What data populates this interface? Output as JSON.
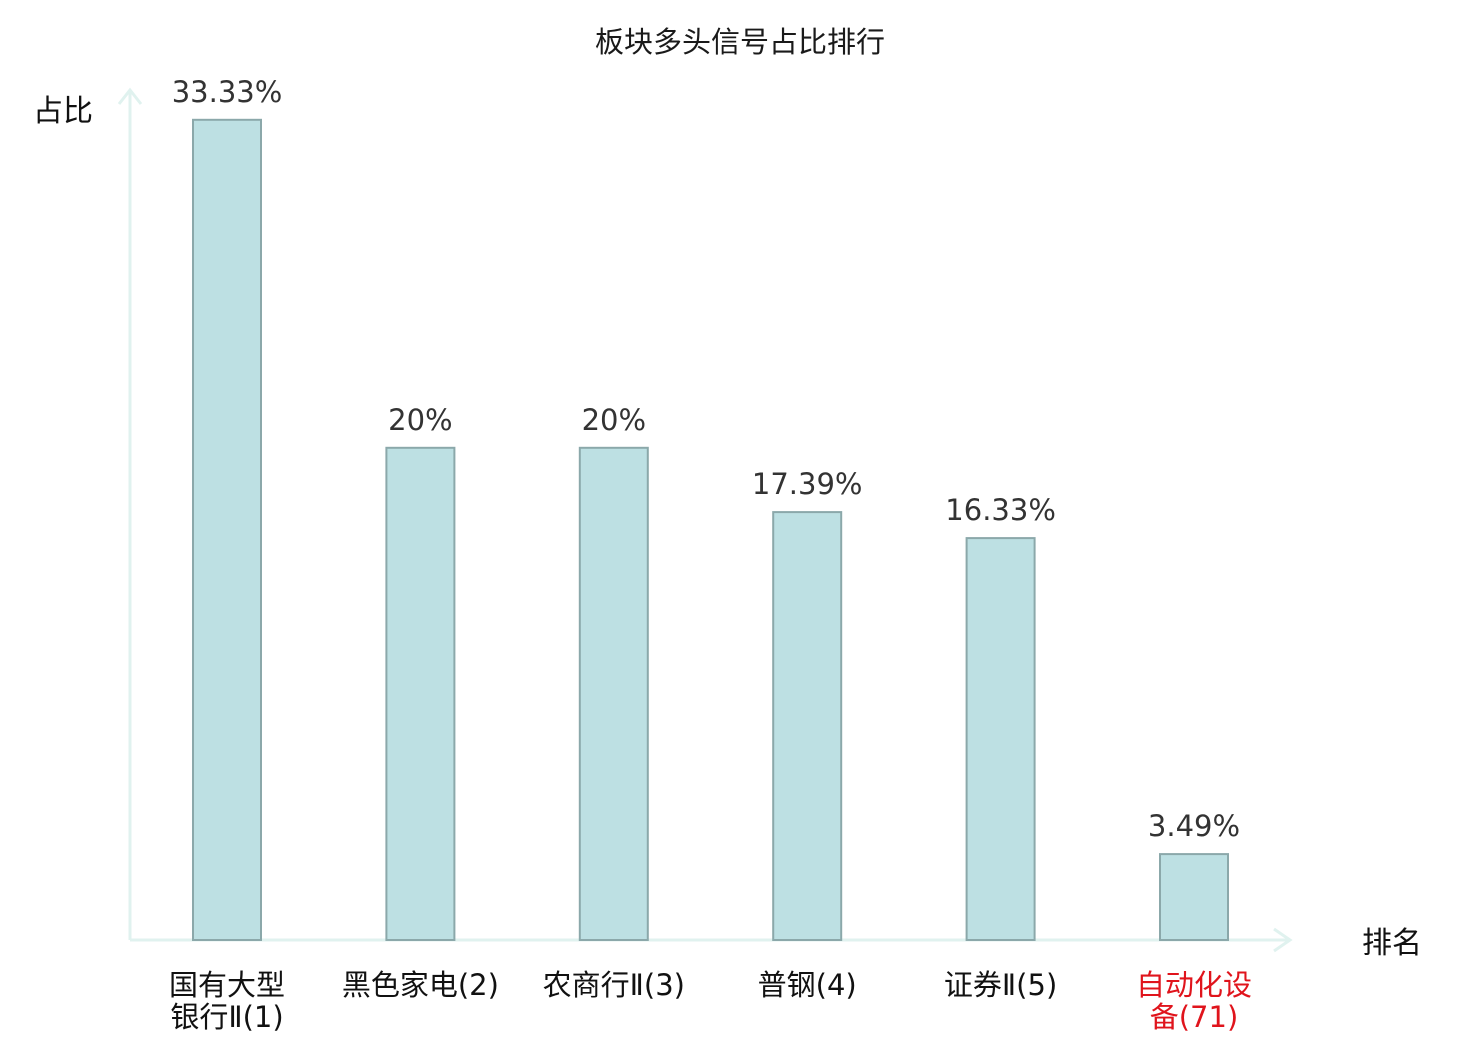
{
  "chart_data": {
    "type": "bar",
    "title": "板块多头信号占比排行",
    "ylabel": "占比",
    "xlabel": "排名",
    "ylim": [
      0,
      34.5
    ],
    "grid": false,
    "categories": [
      {
        "lines": [
          "国有大型",
          "银行Ⅱ(1)"
        ],
        "highlight": false
      },
      {
        "lines": [
          "黑色家电(2)"
        ],
        "highlight": false
      },
      {
        "lines": [
          "农商行Ⅱ(3)"
        ],
        "highlight": false
      },
      {
        "lines": [
          "普钢(4)"
        ],
        "highlight": false
      },
      {
        "lines": [
          "证券Ⅱ(5)"
        ],
        "highlight": false
      },
      {
        "lines": [
          "自动化设",
          "备(71)"
        ],
        "highlight": true
      }
    ],
    "values": [
      33.33,
      20,
      20,
      17.39,
      16.33,
      3.49
    ],
    "value_labels": [
      "33.33%",
      "20%",
      "20%",
      "17.39%",
      "16.33%",
      "3.49%"
    ]
  },
  "colors": {
    "bar_fill": "#bde0e3",
    "bar_stroke": "#8ba8aa",
    "axis": "#e0f2ef",
    "text": "#111111",
    "value_text": "#333333",
    "highlight": "#e0141c"
  }
}
